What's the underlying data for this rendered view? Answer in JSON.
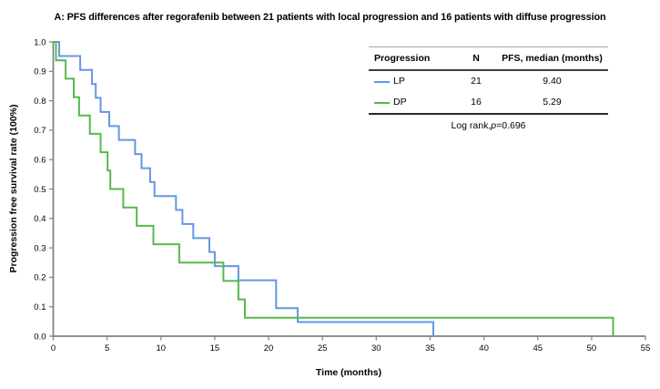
{
  "title": "A: PFS differences after regorafenib between 21 patients with local progression and 16 patients with diffuse progression",
  "axes": {
    "x_label": "Time (months)",
    "y_label": "Progression free survival rate (100%)"
  },
  "legend": {
    "headers": [
      "Progression",
      "N",
      "PFS, median (months)"
    ],
    "rows": [
      {
        "label": "LP",
        "n": "21",
        "median": "9.40",
        "color": "#6496e6"
      },
      {
        "label": "DP",
        "n": "16",
        "median": "5.29",
        "color": "#55b94b"
      }
    ],
    "log_rank_prefix": "Log rank, ",
    "p_symbol": "p",
    "p_value": "=0.696"
  },
  "colors": {
    "axis": "#808080",
    "tick_text": "#000000",
    "lp_line": "#6496e6",
    "dp_line": "#55b94b"
  },
  "chart_data": {
    "type": "line",
    "subtype": "kaplan-meier-step",
    "title": "A: PFS differences after regorafenib between 21 patients with local progression and 16 patients with diffuse progression",
    "xlabel": "Time (months)",
    "ylabel": "Progression free survival rate (100%)",
    "xlim": [
      0,
      55
    ],
    "ylim": [
      0,
      1
    ],
    "x_ticks": [
      0,
      5,
      10,
      15,
      20,
      25,
      30,
      35,
      40,
      45,
      50,
      55
    ],
    "y_ticks": [
      0.0,
      0.1,
      0.2,
      0.3,
      0.4,
      0.5,
      0.6,
      0.7,
      0.8,
      0.9,
      1.0
    ],
    "grid": false,
    "legend_position": "top-right",
    "log_rank_p": 0.696,
    "series": [
      {
        "name": "LP",
        "n": 21,
        "median_months": 9.4,
        "color": "#6496e6",
        "steps": [
          [
            0,
            1.0
          ],
          [
            0.55,
            0.952
          ],
          [
            2.5,
            0.905
          ],
          [
            3.6,
            0.857
          ],
          [
            3.95,
            0.81
          ],
          [
            4.4,
            0.762
          ],
          [
            5.2,
            0.714
          ],
          [
            6.1,
            0.667
          ],
          [
            7.6,
            0.619
          ],
          [
            8.2,
            0.571
          ],
          [
            9.0,
            0.524
          ],
          [
            9.4,
            0.476
          ],
          [
            11.4,
            0.429
          ],
          [
            12.0,
            0.381
          ],
          [
            13.0,
            0.333
          ],
          [
            14.5,
            0.286
          ],
          [
            15.0,
            0.238
          ],
          [
            17.2,
            0.19
          ],
          [
            20.7,
            0.095
          ],
          [
            22.7,
            0.048
          ],
          [
            35.3,
            0.0
          ]
        ]
      },
      {
        "name": "DP",
        "n": 16,
        "median_months": 5.29,
        "color": "#55b94b",
        "steps": [
          [
            0,
            1.0
          ],
          [
            0.25,
            0.9375
          ],
          [
            1.15,
            0.875
          ],
          [
            1.9,
            0.8125
          ],
          [
            2.4,
            0.75
          ],
          [
            3.4,
            0.6875
          ],
          [
            4.4,
            0.625
          ],
          [
            5.05,
            0.5625
          ],
          [
            5.3,
            0.5
          ],
          [
            6.5,
            0.4375
          ],
          [
            7.75,
            0.375
          ],
          [
            9.3,
            0.3125
          ],
          [
            11.7,
            0.25
          ],
          [
            15.8,
            0.1875
          ],
          [
            17.2,
            0.125
          ],
          [
            17.8,
            0.0625
          ],
          [
            52.0,
            0.0
          ]
        ]
      }
    ]
  }
}
